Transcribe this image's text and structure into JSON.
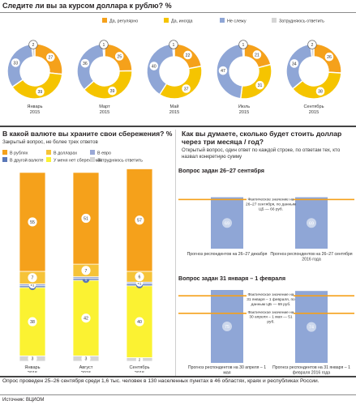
{
  "colors": {
    "regular": "#f5a11b",
    "sometimes": "#f5c400",
    "no": "#8fa6d6",
    "no_answer": "#d5d5d5",
    "dollars": "#f6c338",
    "euro": "#9aa8d6",
    "other_currency": "#5b78b8",
    "no_savings": "#fbf232",
    "hard_to_answer": "#d5d5d5",
    "bar_blue": "#8fa6d6",
    "line_orange": "#f5a11b"
  },
  "section1": {
    "title": "Следите ли вы за курсом доллара к рублю? %",
    "legend": [
      "Да, регулярно",
      "Да, иногда",
      "Не слежу",
      "Затрудняюсь ответить"
    ]
  },
  "section2": {
    "title": "В какой валюте вы храните свои сбережения? %",
    "subtitle": "Закрытый вопрос, не более трех ответов",
    "legend": [
      "В рублях",
      "В долларах",
      "В евро",
      "В другой валюте",
      "У меня нет сбережений",
      "Затрудняюсь ответить"
    ]
  },
  "section3": {
    "title": "Как вы думаете, сколько будет стоить доллар через три месяца / год?",
    "subtitle": "Открытый вопрос, один ответ по каждой строке, по ответам тех, кто назвал конкретную сумму",
    "group1": {
      "title": "Вопрос задан 26–27 сентября",
      "annotation": "Фактическое значение на 26–27 сентября, по данным ЦБ — 66 руб."
    },
    "group2": {
      "title": "Вопрос задан 31 января – 1 февраля",
      "annotation_a": "Фактическое значение на 31 января – 1 февраля, по данным ЦБ — 69 руб.",
      "annotation_b": "Фактическое значение на 30 апреля – 1 мая — 51 руб."
    }
  },
  "footer": {
    "note": "Опрос проведен 25–26 сентября среди 1,6 тыс. человек в 130 населенных пунктах в 46 областях, краях и республиках России.",
    "source": "Источник: ВЦИОМ"
  },
  "chart_data": [
    {
      "type": "pie",
      "title": "Следите ли вы за курсом доллара к рублю? %",
      "series_names": [
        "Да, регулярно",
        "Да, иногда",
        "Не слежу",
        "Затрудняюсь ответить"
      ],
      "charts": [
        {
          "label": "Январь 2015",
          "values": [
            27,
            39,
            33,
            2
          ]
        },
        {
          "label": "Март 2015",
          "values": [
            25,
            39,
            36,
            1
          ]
        },
        {
          "label": "Май 2015",
          "values": [
            22,
            37,
            40,
            1
          ]
        },
        {
          "label": "Июль 2015",
          "values": [
            21,
            31,
            47,
            1
          ]
        },
        {
          "label": "Сентябрь 2015",
          "values": [
            26,
            38,
            34,
            2
          ]
        }
      ]
    },
    {
      "type": "bar",
      "stacked": true,
      "title": "В какой валюте вы храните свои сбережения? %",
      "categories": [
        "Январь 2015",
        "Август 2015",
        "Сентябрь 2015"
      ],
      "series": [
        {
          "name": "Затрудняюсь ответить",
          "values": [
            3,
            3,
            2
          ]
        },
        {
          "name": "У меня нет сбережений",
          "values": [
            38,
            42,
            40
          ]
        },
        {
          "name": "В другой валюте",
          "values": [
            1,
            1,
            1
          ]
        },
        {
          "name": "В евро",
          "values": [
            1,
            1,
            1
          ]
        },
        {
          "name": "В долларах",
          "values": [
            7,
            7,
            6
          ]
        },
        {
          "name": "В рублях",
          "values": [
            55,
            51,
            57
          ]
        }
      ],
      "labeled": [
        {
          "name": "В рублях",
          "values": [
            55,
            51,
            57
          ]
        },
        {
          "name": "В долларах",
          "values": [
            7,
            7,
            6
          ]
        },
        {
          "name": "В евро",
          "values": [
            "<1",
            "",
            "<1"
          ]
        },
        {
          "name": "В другой валюте",
          "values": [
            "<1",
            "1",
            "<1"
          ]
        },
        {
          "name": "У меня нет сбережений",
          "values": [
            38,
            42,
            40
          ]
        },
        {
          "name": "Затрудняюсь ответить",
          "values": [
            3,
            3,
            2
          ]
        }
      ]
    },
    {
      "type": "bar",
      "title": "Вопрос задан 26–27 сентября",
      "categories": [
        "Прогноз респондентов на 26–27 декабря",
        "Прогноз респондентов на 26–27 сентября 2016 года"
      ],
      "values": [
        69,
        69
      ],
      "reference_line": 66
    },
    {
      "type": "bar",
      "title": "Вопрос задан 31 января – 1 февраля",
      "categories": [
        "Прогноз респондентов на 30 апреля – 1 мая",
        "Прогноз респондентов на 31 января – 1 февраля 2016 года"
      ],
      "values": [
        75,
        74
      ],
      "reference_lines": [
        69,
        51
      ]
    }
  ]
}
